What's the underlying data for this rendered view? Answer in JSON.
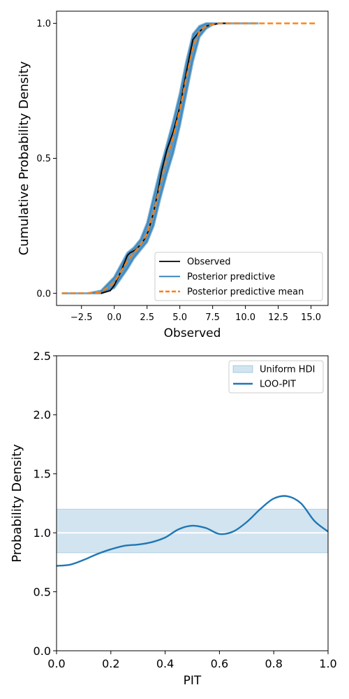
{
  "chart_data": [
    {
      "type": "line",
      "title": "",
      "xlabel": "Observed",
      "ylabel": "Cumulative Probability Density",
      "xlim": [
        -4.4,
        16.3
      ],
      "ylim": [
        -0.045,
        1.045
      ],
      "xticks": [
        -2.5,
        0.0,
        2.5,
        5.0,
        7.5,
        10.0,
        12.5,
        15.0
      ],
      "xtick_labels": [
        "−2.5",
        "0.0",
        "2.5",
        "5.0",
        "7.5",
        "10.0",
        "12.5",
        "15.0"
      ],
      "yticks": [
        0.0,
        0.5,
        1.0
      ],
      "ytick_labels": [
        "0.0",
        "0.5",
        "1.0"
      ],
      "grid": false,
      "legend": "lower-right",
      "colors": {
        "observed": "#000000",
        "posterior_predictive": "#1f77b4",
        "posterior_predictive_mean": "#ff7f0e"
      },
      "series": [
        {
          "name": "Observed",
          "style": "solid",
          "x": [
            -1.0,
            -0.3,
            0.0,
            0.5,
            1.0,
            1.2,
            1.6,
            2.0,
            2.3,
            2.6,
            3.0,
            3.3,
            3.6,
            4.0,
            4.5,
            5.0,
            5.5,
            6.0,
            6.5,
            7.0,
            7.5,
            8.0,
            8.5
          ],
          "y": [
            0.0,
            0.01,
            0.03,
            0.08,
            0.14,
            0.15,
            0.16,
            0.18,
            0.2,
            0.23,
            0.3,
            0.37,
            0.45,
            0.53,
            0.6,
            0.69,
            0.82,
            0.94,
            0.97,
            0.99,
            0.995,
            1.0,
            1.0
          ]
        },
        {
          "name": "Posterior predictive",
          "style": "band",
          "x": [
            -4.0,
            -2.0,
            -1.0,
            0.0,
            1.0,
            1.5,
            2.0,
            2.5,
            3.0,
            3.5,
            4.0,
            4.5,
            5.0,
            5.5,
            6.0,
            6.5,
            7.0,
            7.5,
            8.0,
            9.0,
            11.0
          ],
          "y_low": [
            0.0,
            0.0,
            0.0,
            0.02,
            0.09,
            0.13,
            0.16,
            0.19,
            0.25,
            0.35,
            0.44,
            0.52,
            0.62,
            0.74,
            0.86,
            0.95,
            0.98,
            0.995,
            1.0,
            1.0,
            1.0
          ],
          "y_high": [
            0.0,
            0.0,
            0.01,
            0.06,
            0.15,
            0.17,
            0.2,
            0.26,
            0.36,
            0.46,
            0.55,
            0.64,
            0.74,
            0.86,
            0.96,
            0.99,
            1.0,
            1.0,
            1.0,
            1.0,
            1.0
          ]
        },
        {
          "name": "Posterior predictive mean",
          "style": "dashed",
          "x": [
            -4.0,
            -2.0,
            -1.0,
            0.0,
            0.5,
            1.0,
            1.5,
            2.0,
            2.5,
            3.0,
            3.5,
            4.0,
            4.5,
            5.0,
            5.5,
            6.0,
            6.5,
            7.0,
            7.5,
            8.0,
            10.0,
            15.3
          ],
          "y": [
            0.0,
            0.0,
            0.005,
            0.04,
            0.08,
            0.12,
            0.15,
            0.18,
            0.22,
            0.3,
            0.4,
            0.5,
            0.58,
            0.68,
            0.8,
            0.91,
            0.97,
            0.99,
            0.995,
            1.0,
            1.0,
            1.0
          ]
        }
      ]
    },
    {
      "type": "line",
      "title": "",
      "xlabel": "PIT",
      "ylabel": "Probability Density",
      "xlim": [
        0.0,
        1.0
      ],
      "ylim": [
        0.0,
        2.5
      ],
      "xticks": [
        0.0,
        0.2,
        0.4,
        0.6,
        0.8,
        1.0
      ],
      "xtick_labels": [
        "0.0",
        "0.2",
        "0.4",
        "0.6",
        "0.8",
        "1.0"
      ],
      "yticks": [
        0.0,
        0.5,
        1.0,
        1.5,
        2.0,
        2.5
      ],
      "ytick_labels": [
        "0.0",
        "0.5",
        "1.0",
        "1.5",
        "2.0",
        "2.5"
      ],
      "grid": false,
      "legend": "top-right",
      "colors": {
        "hdi_fill": "#1f77b4",
        "loo_pit": "#1f77b4",
        "reference": "#ffffff"
      },
      "hdi": {
        "name": "Uniform HDI",
        "y_low": 0.83,
        "y_high": 1.2
      },
      "reference_line": 1.0,
      "series": [
        {
          "name": "LOO-PIT",
          "style": "solid",
          "x": [
            0.0,
            0.05,
            0.1,
            0.15,
            0.2,
            0.25,
            0.3,
            0.35,
            0.4,
            0.45,
            0.5,
            0.55,
            0.6,
            0.65,
            0.7,
            0.75,
            0.8,
            0.85,
            0.9,
            0.95,
            1.0
          ],
          "y": [
            0.72,
            0.73,
            0.77,
            0.82,
            0.86,
            0.89,
            0.9,
            0.92,
            0.96,
            1.03,
            1.06,
            1.04,
            0.99,
            1.01,
            1.09,
            1.2,
            1.29,
            1.31,
            1.25,
            1.1,
            1.01
          ]
        }
      ]
    }
  ]
}
